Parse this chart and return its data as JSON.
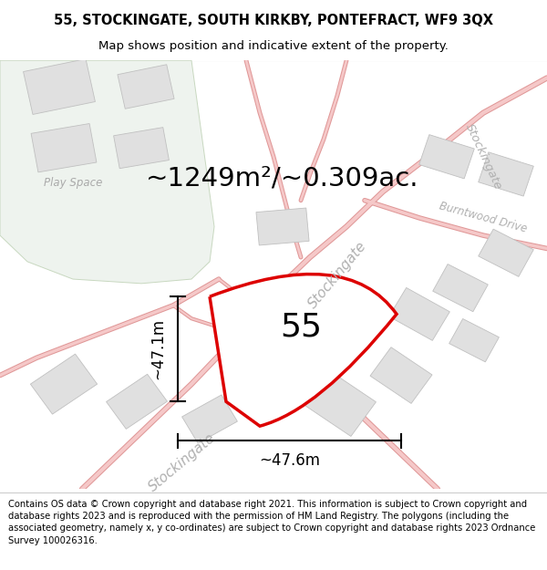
{
  "title": "55, STOCKINGATE, SOUTH KIRKBY, PONTEFRACT, WF9 3QX",
  "subtitle": "Map shows position and indicative extent of the property.",
  "footer": "Contains OS data © Crown copyright and database right 2021. This information is subject to Crown copyright and database rights 2023 and is reproduced with the permission of HM Land Registry. The polygons (including the associated geometry, namely x, y co-ordinates) are subject to Crown copyright and database rights 2023 Ordnance Survey 100026316.",
  "area_label": "~1249m²/~0.309ac.",
  "plot_number": "55",
  "dim_vertical": "~47.1m",
  "dim_horizontal": "~47.6m",
  "map_bg": "#ffffff",
  "plot_fill": "#ffffff",
  "plot_outline": "#dd0000",
  "road_color": "#f9d0d0",
  "road_edge_color": "#e8a0a0",
  "green_fill": "#eef3ee",
  "green_edge": "#c8d8c0",
  "building_fill": "#e0e0e0",
  "building_stroke": "#c8c8c8",
  "road_label_color": "#b0b0b0",
  "play_space_label_color": "#aaaaaa",
  "title_fontsize": 10.5,
  "subtitle_fontsize": 9.5,
  "footer_fontsize": 7.2,
  "area_label_fontsize": 21,
  "plot_number_fontsize": 26,
  "dim_fontsize": 12,
  "road_label_fontsize": 11,
  "figure_width": 6.0,
  "figure_height": 6.25
}
